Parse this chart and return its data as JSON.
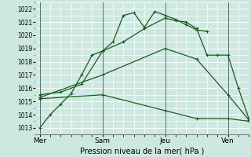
{
  "xlabel": "Pression niveau de la mer( hPa )",
  "background_color": "#cce8e0",
  "grid_color": "#ffffff",
  "line_color": "#1a5c1a",
  "ylim": [
    1012.5,
    1022.5
  ],
  "yticks": [
    1013,
    1014,
    1015,
    1016,
    1017,
    1018,
    1019,
    1020,
    1021,
    1022
  ],
  "xtick_labels": [
    "Mer",
    "Sam",
    "Jeu",
    "Ven"
  ],
  "xtick_positions": [
    0,
    30,
    60,
    90
  ],
  "vline_positions": [
    0,
    30,
    60,
    90
  ],
  "xlim": [
    -2,
    100
  ],
  "series": [
    {
      "x": [
        0,
        5,
        10,
        15,
        20,
        25,
        30,
        35,
        40,
        45,
        50,
        55,
        60,
        65,
        70,
        75,
        80
      ],
      "y": [
        1013.0,
        1014.0,
        1014.8,
        1015.6,
        1017.0,
        1018.5,
        1018.8,
        1019.5,
        1021.5,
        1021.7,
        1020.6,
        1021.8,
        1021.5,
        1021.2,
        1020.8,
        1020.4,
        1020.3
      ]
    },
    {
      "x": [
        0,
        10,
        20,
        30,
        40,
        50,
        60,
        65,
        70,
        75,
        80,
        85,
        90,
        95,
        100
      ],
      "y": [
        1015.5,
        1015.7,
        1016.3,
        1018.8,
        1019.5,
        1020.5,
        1021.3,
        1021.1,
        1021.0,
        1020.5,
        1018.5,
        1018.5,
        1018.5,
        1016.0,
        1013.7
      ]
    },
    {
      "x": [
        0,
        30,
        60,
        75,
        90,
        100
      ],
      "y": [
        1015.3,
        1017.0,
        1019.0,
        1018.2,
        1015.5,
        1013.6
      ]
    },
    {
      "x": [
        0,
        30,
        60,
        75,
        90,
        100
      ],
      "y": [
        1015.2,
        1015.5,
        1014.3,
        1013.7,
        1013.7,
        1013.5
      ]
    }
  ]
}
